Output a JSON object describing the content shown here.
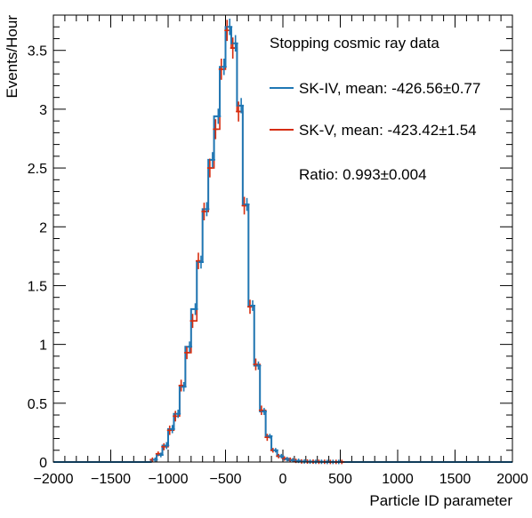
{
  "chart_data": {
    "type": "step-histogram",
    "title": "",
    "xlabel": "Particle ID parameter",
    "ylabel": "Events/Hour",
    "xlim": [
      -2000,
      2000
    ],
    "ylim": [
      0,
      3.8
    ],
    "x_ticks": [
      -2000,
      -1500,
      -1000,
      -500,
      0,
      500,
      1000,
      1500,
      2000
    ],
    "x_tick_labels": [
      "−2000",
      "−1500",
      "−1000",
      "−500",
      "0",
      "500",
      "1000",
      "1500",
      "2000"
    ],
    "y_ticks": [
      0,
      0.5,
      1,
      1.5,
      2,
      2.5,
      3,
      3.5
    ],
    "y_tick_labels": [
      "0",
      "0.5",
      "1",
      "1.5",
      "2",
      "2.5",
      "3",
      "3.5"
    ],
    "bin_width": 50,
    "bin_centers": [
      -1175,
      -1125,
      -1075,
      -1025,
      -975,
      -925,
      -875,
      -825,
      -775,
      -725,
      -675,
      -625,
      -575,
      -525,
      -475,
      -425,
      -375,
      -325,
      -275,
      -225,
      -175,
      -125,
      -75,
      -25,
      25,
      75,
      125,
      175,
      225,
      275,
      325,
      375,
      425,
      475,
      525,
      575,
      625
    ],
    "legend_header": "Stopping cosmic ray data",
    "series": [
      {
        "name": "SK-IV, mean: -426.56±0.77",
        "color": "#1f77b4",
        "values": [
          0.0,
          0.02,
          0.06,
          0.14,
          0.28,
          0.41,
          0.64,
          0.98,
          1.3,
          1.7,
          2.15,
          2.57,
          2.94,
          3.36,
          3.7,
          3.56,
          3.03,
          2.19,
          1.33,
          0.82,
          0.43,
          0.22,
          0.1,
          0.05,
          0.025,
          0.015,
          0.01,
          0.005,
          0.003,
          0.002,
          0.002,
          0.001,
          0.001,
          0.001,
          0.0,
          0.0,
          0.0
        ],
        "errors": [
          0.0,
          0.01,
          0.02,
          0.03,
          0.035,
          0.035,
          0.04,
          0.045,
          0.05,
          0.055,
          0.06,
          0.065,
          0.065,
          0.07,
          0.07,
          0.07,
          0.065,
          0.055,
          0.045,
          0.035,
          0.03,
          0.02,
          0.015,
          0.01,
          0.008,
          0.006,
          0.004,
          0.003,
          0.002,
          0.001,
          0.001,
          0.001,
          0.001,
          0.001,
          0.0,
          0.0,
          0.0
        ]
      },
      {
        "name": "SK-V, mean: -423.42±1.54",
        "color": "#d62c0e",
        "values": [
          0.0,
          0.02,
          0.07,
          0.13,
          0.27,
          0.39,
          0.65,
          0.93,
          1.2,
          1.71,
          2.13,
          2.5,
          2.83,
          3.34,
          3.67,
          3.52,
          2.98,
          2.18,
          1.32,
          0.83,
          0.44,
          0.21,
          0.1,
          0.05,
          0.03,
          0.02,
          0.01,
          0.005,
          0.004,
          0.003,
          0.002,
          0.002,
          0.001,
          0.001,
          0.001,
          0.0,
          0.0
        ],
        "errors": [
          0.0,
          0.01,
          0.02,
          0.03,
          0.04,
          0.045,
          0.05,
          0.055,
          0.06,
          0.07,
          0.075,
          0.08,
          0.085,
          0.09,
          0.09,
          0.09,
          0.085,
          0.075,
          0.06,
          0.05,
          0.04,
          0.03,
          0.02,
          0.015,
          0.01,
          0.008,
          0.006,
          0.004,
          0.003,
          0.002,
          0.002,
          0.002,
          0.001,
          0.001,
          0.001,
          0.0,
          0.0
        ]
      }
    ],
    "annotation": "Ratio: 0.993±0.004",
    "grid": false,
    "legend_position": "top-right"
  }
}
